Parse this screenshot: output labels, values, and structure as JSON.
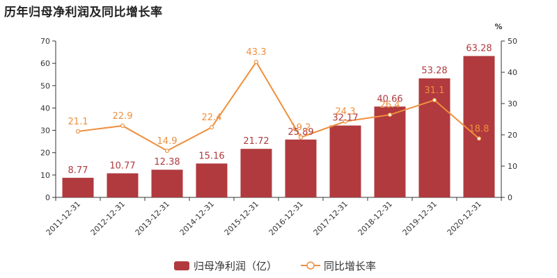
{
  "title": "历年归母净利润及同比增长率",
  "colors": {
    "bar": "#b03a3e",
    "line": "#ef8f3c",
    "axis": "#333333"
  },
  "chart_data": {
    "type": "bar",
    "title": "历年归母净利润及同比增长率",
    "categories": [
      "2011-12-31",
      "2012-12-31",
      "2013-12-31",
      "2014-12-31",
      "2015-12-31",
      "2016-12-31",
      "2017-12-31",
      "2018-12-31",
      "2019-12-31",
      "2020-12-31"
    ],
    "series": [
      {
        "name": "归母净利润（亿）",
        "type": "bar",
        "axis": "left",
        "values": [
          8.77,
          10.77,
          12.38,
          15.16,
          21.72,
          25.89,
          32.17,
          40.66,
          53.28,
          63.28
        ]
      },
      {
        "name": "同比增长率",
        "type": "line",
        "axis": "right",
        "values": [
          21.1,
          22.9,
          14.9,
          22.4,
          43.3,
          19.2,
          24.3,
          26.4,
          31.1,
          18.8
        ]
      }
    ],
    "y_left": {
      "ylim": [
        0,
        70
      ],
      "ticks": [
        0,
        10,
        20,
        30,
        40,
        50,
        60,
        70
      ]
    },
    "y_right": {
      "label": "%",
      "ylim": [
        0,
        50
      ],
      "ticks": [
        0,
        10,
        20,
        30,
        40,
        50
      ]
    },
    "grid": false,
    "legend_position": "bottom"
  }
}
